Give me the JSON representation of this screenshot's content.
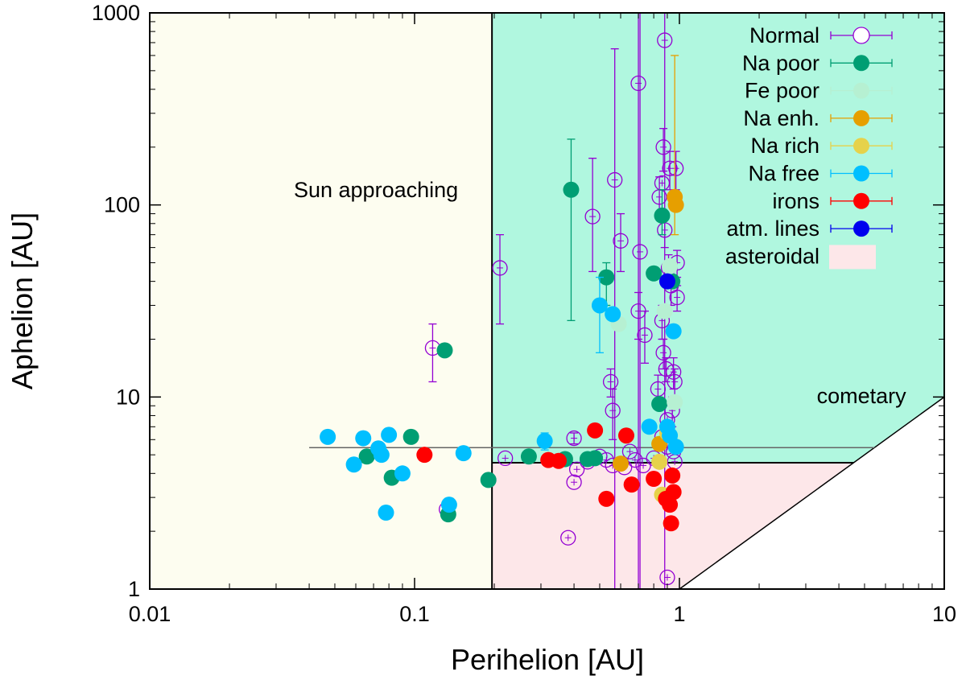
{
  "chart_data": {
    "type": "scatter",
    "title": "",
    "xlabel": "Perihelion [AU]",
    "ylabel": "Aphelion [AU]",
    "x_scale": "log",
    "y_scale": "log",
    "xlim": [
      0.01,
      10
    ],
    "ylim": [
      1,
      1000
    ],
    "x_ticks": [
      {
        "value": 0.01,
        "label": "0.01"
      },
      {
        "value": 0.1,
        "label": "0.1"
      },
      {
        "value": 1,
        "label": "1"
      },
      {
        "value": 10,
        "label": "10"
      }
    ],
    "y_ticks": [
      {
        "value": 1,
        "label": "1"
      },
      {
        "value": 10,
        "label": "10"
      },
      {
        "value": 100,
        "label": "100"
      },
      {
        "value": 1000,
        "label": "1000"
      }
    ],
    "grid": false,
    "legend_position": "top-right",
    "regions": [
      {
        "key": "sun",
        "label": "Sun approaching",
        "color": "#fdfdf0",
        "label_at": [
          0.035,
          110
        ]
      },
      {
        "key": "cometary",
        "label": "cometary",
        "color": "#b0f7df",
        "label_at": [
          3.3,
          9.3
        ]
      },
      {
        "key": "asteroidal",
        "label": "asteroidal",
        "color": "#fde7e9",
        "label_at": null
      }
    ],
    "reference_lines": [
      {
        "name": "jupiter-aphelion",
        "y": 5.45,
        "x_from": 0.04,
        "x_to": 5.45,
        "color": "#666666"
      }
    ],
    "boundaries": {
      "perihelion_split": 0.196,
      "aphelion_split": 4.55,
      "q_equals_Q_max": 10
    },
    "series": [
      {
        "name": "Normal",
        "color": "#9400d3",
        "marker": "open-circle",
        "points": [
          [
            0.21,
            47,
            24,
            70
          ],
          [
            0.117,
            18,
            12,
            24
          ],
          [
            0.132,
            2.6,
            null,
            null
          ],
          [
            0.22,
            4.8,
            null,
            null
          ],
          [
            0.38,
            1.85,
            null,
            null
          ],
          [
            0.4,
            3.6,
            null,
            null
          ],
          [
            0.4,
            6.1,
            5.7,
            6.5
          ],
          [
            0.41,
            4.2,
            null,
            null
          ],
          [
            0.45,
            4.6,
            null,
            null
          ],
          [
            0.47,
            87,
            45,
            175
          ],
          [
            0.5,
            4.9,
            null,
            null
          ],
          [
            0.53,
            4.7,
            null,
            null
          ],
          [
            0.55,
            12,
            10,
            14
          ],
          [
            0.56,
            8.5,
            6,
            11
          ],
          [
            0.56,
            4.4,
            null,
            null
          ],
          [
            0.57,
            135,
            1,
            650
          ],
          [
            0.6,
            65,
            45,
            90
          ],
          [
            0.62,
            4.3,
            null,
            null
          ],
          [
            0.65,
            5.2,
            null,
            null
          ],
          [
            0.68,
            4.7,
            null,
            null
          ],
          [
            0.7,
            430,
            1,
            1000
          ],
          [
            0.7,
            28,
            20,
            35
          ],
          [
            0.71,
            57,
            1,
            1000
          ],
          [
            0.73,
            4.4,
            null,
            null
          ],
          [
            0.74,
            21,
            15,
            28
          ],
          [
            0.8,
            4.8,
            null,
            null
          ],
          [
            0.83,
            11,
            9,
            13
          ],
          [
            0.84,
            110,
            90,
            140
          ],
          [
            0.86,
            25,
            20,
            30
          ],
          [
            0.87,
            200,
            150,
            250
          ],
          [
            0.87,
            17,
            14,
            20
          ],
          [
            0.88,
            720,
            1,
            1000
          ],
          [
            0.88,
            74,
            60,
            90
          ],
          [
            0.89,
            14,
            12,
            16
          ],
          [
            0.9,
            1.15,
            null,
            null
          ],
          [
            0.9,
            5.5,
            null,
            null
          ],
          [
            0.91,
            47,
            40,
            55
          ],
          [
            0.92,
            155,
            120,
            190
          ],
          [
            0.93,
            38,
            30,
            46
          ],
          [
            0.94,
            8.5,
            7,
            10
          ],
          [
            0.95,
            13.5,
            11,
            16
          ],
          [
            0.96,
            12,
            10,
            14
          ],
          [
            0.97,
            155,
            120,
            190
          ],
          [
            0.98,
            50,
            42,
            58
          ],
          [
            0.98,
            33,
            28,
            38
          ],
          [
            0.96,
            4.6,
            null,
            null
          ],
          [
            0.95,
            5.2,
            null,
            null
          ],
          [
            0.92,
            5.9,
            null,
            null
          ],
          [
            0.9,
            7.6,
            null,
            null
          ],
          [
            0.86,
            6.2,
            null,
            null
          ],
          [
            0.86,
            130,
            null,
            null
          ]
        ]
      },
      {
        "name": "Na poor",
        "color": "#009e73",
        "marker": "filled-circle",
        "points": [
          [
            0.066,
            4.9,
            null,
            null
          ],
          [
            0.082,
            3.8,
            null,
            null
          ],
          [
            0.097,
            6.2,
            null,
            null
          ],
          [
            0.13,
            17.5,
            null,
            null
          ],
          [
            0.134,
            2.45,
            null,
            null
          ],
          [
            0.19,
            3.7,
            null,
            null
          ],
          [
            0.27,
            4.9,
            null,
            null
          ],
          [
            0.37,
            4.75,
            null,
            null
          ],
          [
            0.39,
            120,
            25,
            220
          ],
          [
            0.45,
            4.75,
            null,
            null
          ],
          [
            0.48,
            4.8,
            null,
            null
          ],
          [
            0.53,
            42,
            30,
            50
          ],
          [
            0.8,
            44,
            null,
            null
          ],
          [
            0.84,
            9.2,
            null,
            null
          ],
          [
            0.86,
            88,
            70,
            120
          ],
          [
            0.94,
            40,
            null,
            null
          ]
        ]
      },
      {
        "name": "Fe poor",
        "color": "#b6f0d2",
        "marker": "filled-circle",
        "points": [
          [
            0.59,
            24,
            null,
            null
          ],
          [
            0.88,
            28,
            null,
            null
          ],
          [
            0.92,
            48,
            null,
            null
          ],
          [
            0.96,
            9.4,
            null,
            null
          ]
        ]
      },
      {
        "name": "Na enh.",
        "color": "#e69f00",
        "marker": "filled-circle",
        "points": [
          [
            0.6,
            4.5,
            null,
            null
          ],
          [
            0.84,
            5.7,
            null,
            null
          ],
          [
            0.96,
            110,
            70,
            600
          ],
          [
            0.97,
            100,
            null,
            null
          ]
        ]
      },
      {
        "name": "Na rich",
        "color": "#e6d24a",
        "marker": "filled-circle",
        "points": [
          [
            0.84,
            4.6,
            null,
            null
          ],
          [
            0.86,
            3.1,
            null,
            null
          ],
          [
            0.9,
            6.5,
            null,
            null
          ]
        ]
      },
      {
        "name": "Na free",
        "color": "#00bfff",
        "marker": "filled-circle",
        "points": [
          [
            0.047,
            6.2,
            null,
            null
          ],
          [
            0.059,
            4.45,
            null,
            null
          ],
          [
            0.064,
            6.1,
            null,
            null
          ],
          [
            0.073,
            5.4,
            null,
            null
          ],
          [
            0.075,
            5.0,
            null,
            null
          ],
          [
            0.078,
            2.5,
            null,
            null
          ],
          [
            0.08,
            6.35,
            null,
            null
          ],
          [
            0.09,
            4.0,
            null,
            null
          ],
          [
            0.135,
            2.75,
            null,
            null
          ],
          [
            0.153,
            5.1,
            null,
            null
          ],
          [
            0.31,
            5.9,
            5.3,
            6.5
          ],
          [
            0.5,
            30,
            17,
            42
          ],
          [
            0.56,
            27,
            null,
            null
          ],
          [
            0.77,
            7.0,
            null,
            null
          ],
          [
            0.9,
            7.0,
            null,
            null
          ],
          [
            0.92,
            6.3,
            null,
            null
          ],
          [
            0.95,
            22,
            null,
            null
          ],
          [
            0.97,
            5.5,
            null,
            null
          ]
        ]
      },
      {
        "name": "irons",
        "color": "#ff0000",
        "marker": "filled-circle",
        "points": [
          [
            0.109,
            5.0,
            null,
            null
          ],
          [
            0.32,
            4.7,
            null,
            null
          ],
          [
            0.35,
            4.65,
            null,
            null
          ],
          [
            0.48,
            6.7,
            null,
            null
          ],
          [
            0.53,
            2.95,
            null,
            null
          ],
          [
            0.63,
            6.3,
            null,
            null
          ],
          [
            0.66,
            3.5,
            null,
            null
          ],
          [
            0.8,
            3.75,
            null,
            null
          ],
          [
            0.89,
            2.95,
            null,
            null
          ],
          [
            0.92,
            2.75,
            null,
            null
          ],
          [
            0.93,
            2.2,
            null,
            null
          ],
          [
            0.94,
            3.9,
            null,
            null
          ],
          [
            0.95,
            3.2,
            null,
            null
          ]
        ]
      },
      {
        "name": "atm. lines",
        "color": "#0000ee",
        "marker": "filled-circle",
        "points": [
          [
            0.9,
            40,
            null,
            null
          ]
        ]
      },
      {
        "name": "asteroidal",
        "color": "#fde7e9",
        "marker": "box",
        "points": []
      }
    ]
  }
}
